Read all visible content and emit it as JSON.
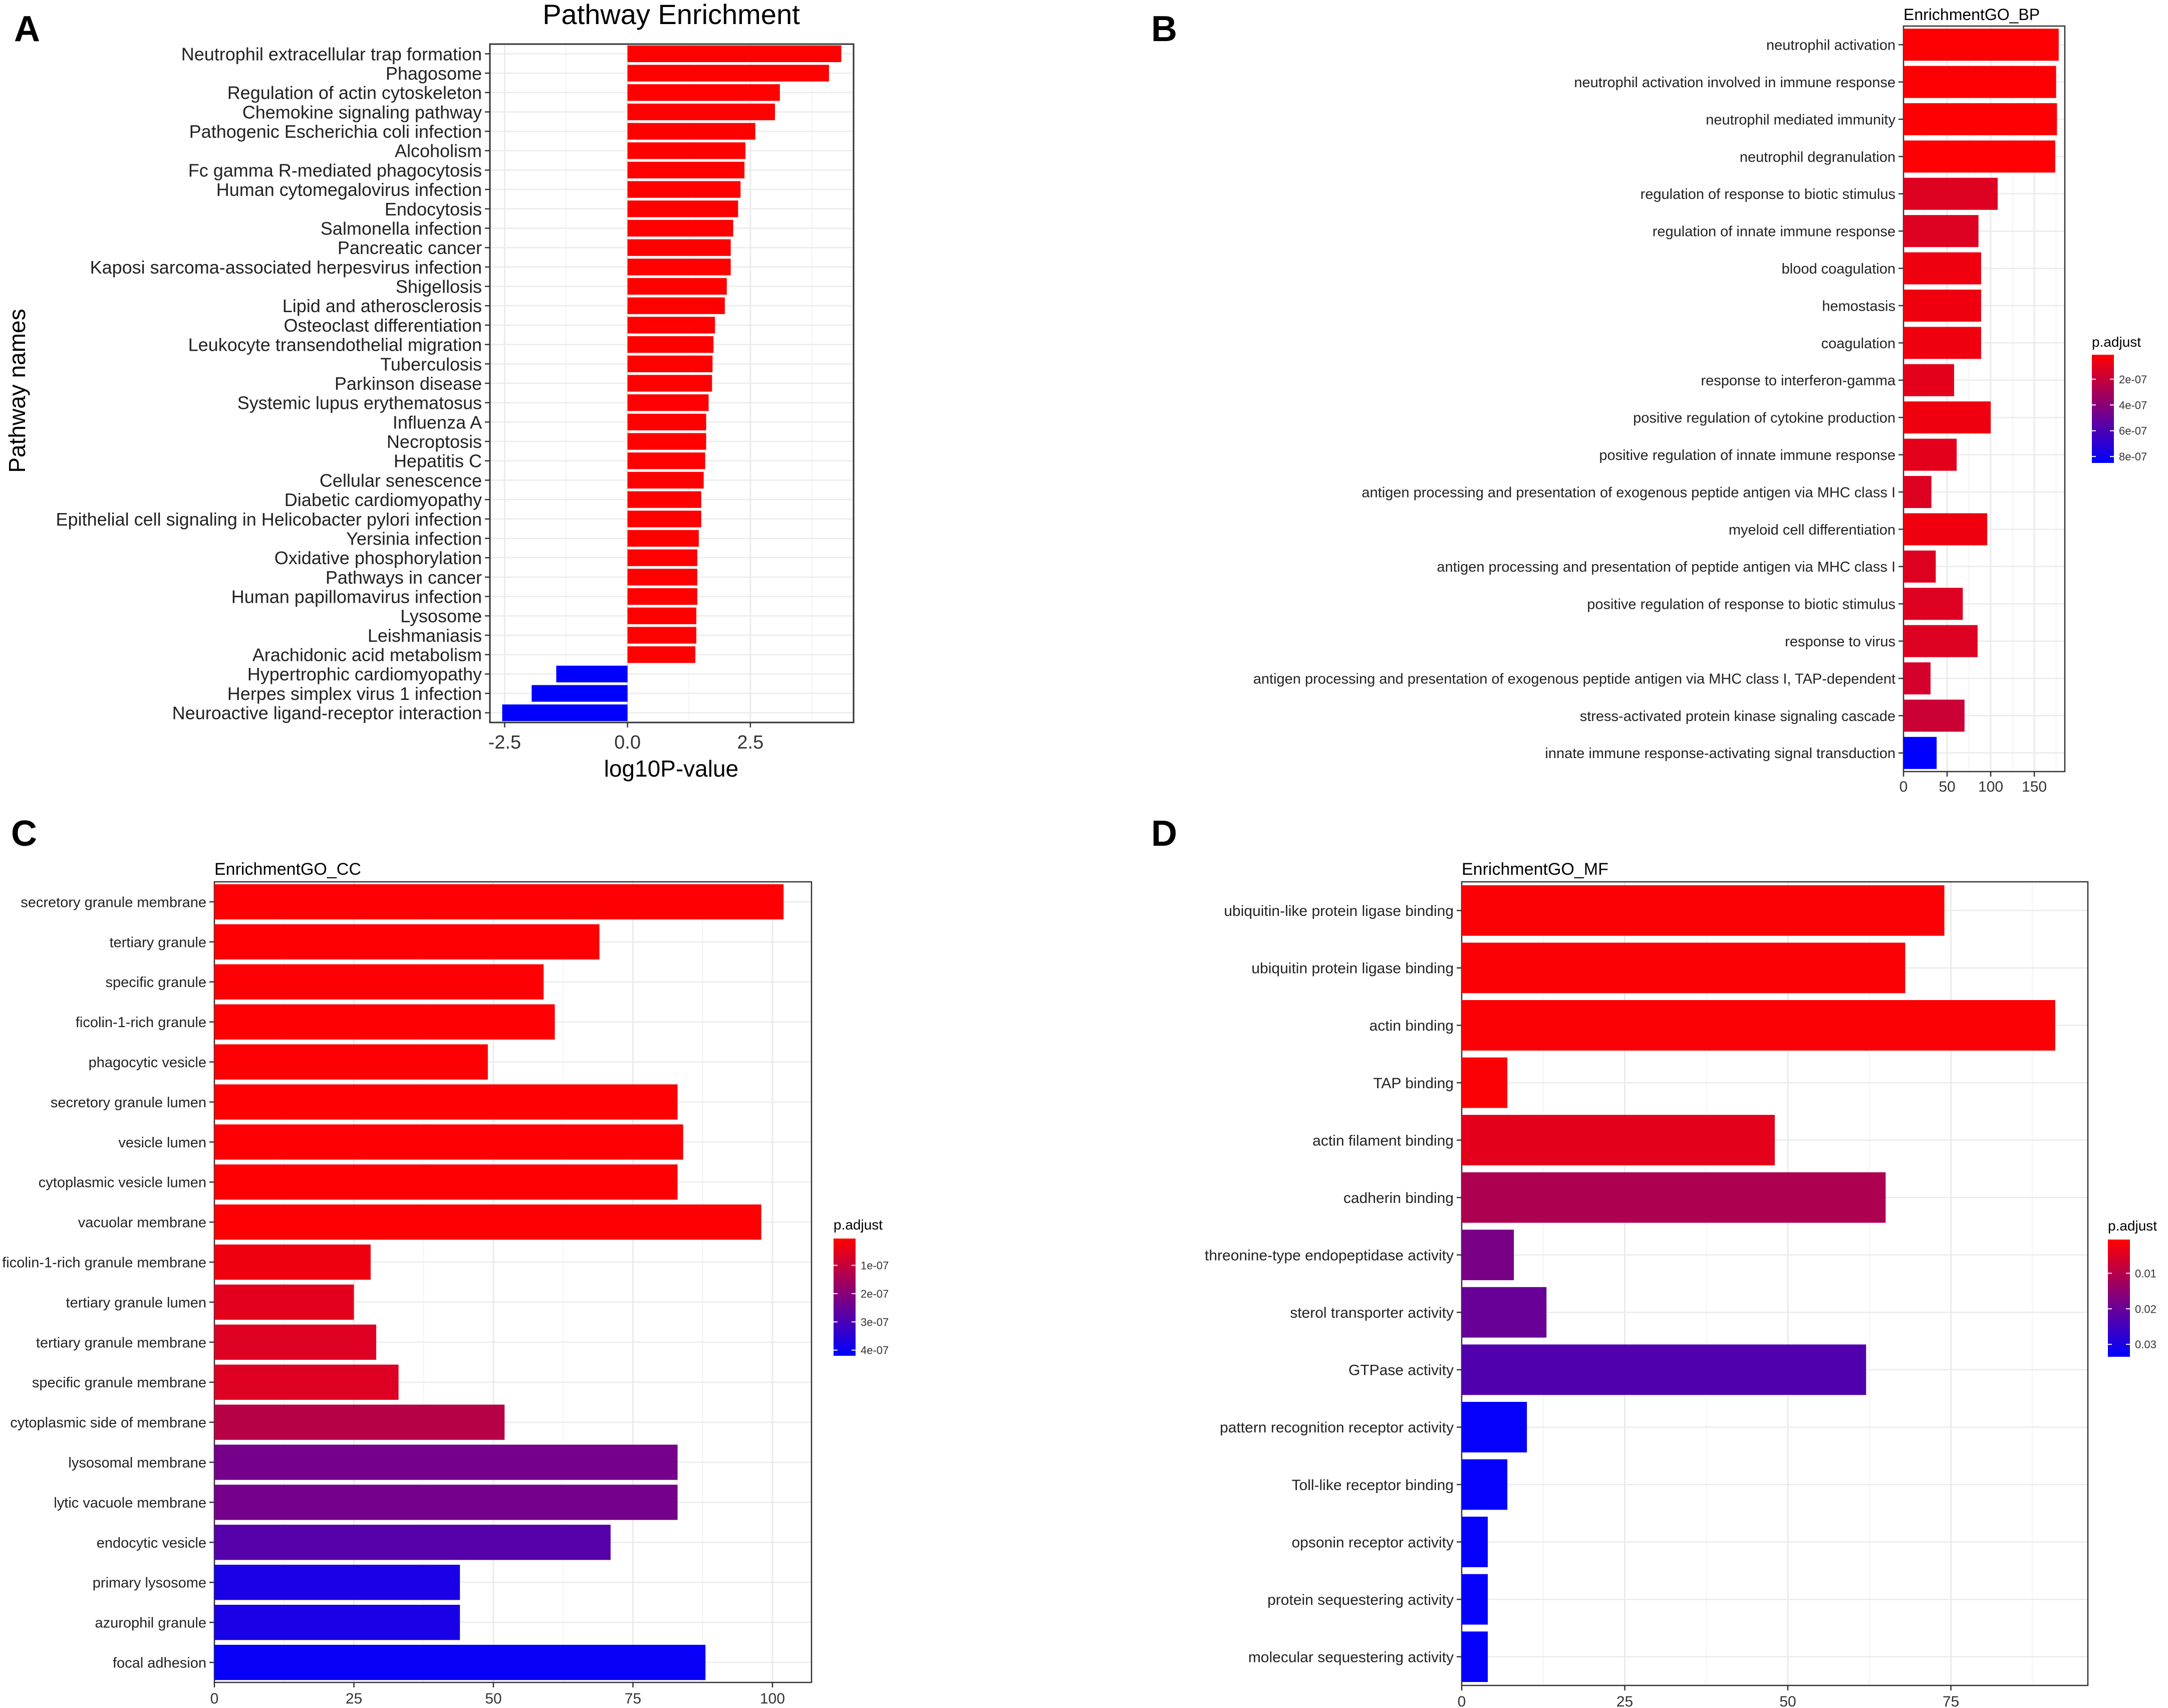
{
  "panels": {
    "A": "A",
    "B": "B",
    "C": "C",
    "D": "D"
  },
  "chart_data": [
    {
      "id": "A",
      "type": "bar",
      "orientation": "horizontal",
      "title": "Pathway Enrichment",
      "xlabel": "log10P-value",
      "ylabel": "Pathway names",
      "xlim": [
        -2.8,
        4.6
      ],
      "xticks": [
        -2.5,
        0.0,
        2.5
      ],
      "xtick_labels": [
        "-2.5",
        "0.0",
        "2.5"
      ],
      "positive_color": "#ff0000",
      "negative_color": "#0000ff",
      "categories": [
        "Neutrophil extracellular trap formation",
        "Phagosome",
        "Regulation of actin cytoskeleton",
        "Chemokine signaling pathway",
        "Pathogenic Escherichia coli infection",
        "Alcoholism",
        "Fc gamma R-mediated phagocytosis",
        "Human cytomegalovirus infection",
        "Endocytosis",
        "Salmonella infection",
        "Pancreatic cancer",
        "Kaposi sarcoma-associated herpesvirus infection",
        "Shigellosis",
        "Lipid and atherosclerosis",
        "Osteoclast differentiation",
        "Leukocyte transendothelial migration",
        "Tuberculosis",
        "Parkinson disease",
        "Systemic lupus erythematosus",
        "Influenza A",
        "Necroptosis",
        "Hepatitis C",
        "Cellular senescence",
        "Diabetic cardiomyopathy",
        "Epithelial cell signaling in Helicobacter pylori infection",
        "Yersinia infection",
        "Oxidative phosphorylation",
        "Pathways in cancer",
        "Human papillomavirus infection",
        "Lysosome",
        "Leishmaniasis",
        "Arachidonic acid metabolism",
        "Hypertrophic cardiomyopathy",
        "Herpes simplex virus 1 infection",
        "Neuroactive ligand-receptor interaction"
      ],
      "values": [
        4.35,
        4.1,
        3.1,
        3.0,
        2.6,
        2.4,
        2.38,
        2.3,
        2.25,
        2.15,
        2.1,
        2.1,
        2.02,
        1.98,
        1.78,
        1.75,
        1.73,
        1.72,
        1.65,
        1.6,
        1.6,
        1.58,
        1.55,
        1.5,
        1.5,
        1.45,
        1.42,
        1.42,
        1.42,
        1.4,
        1.4,
        1.38,
        -1.45,
        -1.95,
        -2.55
      ]
    },
    {
      "id": "B",
      "type": "bar",
      "orientation": "horizontal",
      "title": "EnrichmentGO_BP",
      "xlabel": "",
      "ylabel": "",
      "xlim": [
        0,
        185
      ],
      "xticks": [
        0,
        50,
        100,
        150
      ],
      "xtick_labels": [
        "0",
        "50",
        "100",
        "150"
      ],
      "legend_title": "p.adjust",
      "legend_range": [
        1e-08,
        8.5e-07
      ],
      "legend_ticks": [
        2e-07,
        4e-07,
        6e-07,
        8e-07
      ],
      "legend_labels": [
        "2e-07",
        "4e-07",
        "6e-07",
        "8e-07"
      ],
      "categories": [
        "neutrophil activation",
        "neutrophil activation involved in immune response",
        "neutrophil mediated immunity",
        "neutrophil degranulation",
        "regulation of response to biotic stimulus",
        "regulation of innate immune response",
        "blood coagulation",
        "hemostasis",
        "coagulation",
        "response to interferon-gamma",
        "positive regulation of cytokine production",
        "positive regulation of innate immune response",
        "antigen processing and presentation of exogenous peptide antigen via MHC class I",
        "myeloid cell differentiation",
        "antigen processing and presentation of peptide antigen via MHC class I",
        "positive regulation of response to biotic stimulus",
        "response to virus",
        "antigen processing and presentation of exogenous peptide antigen via MHC class I, TAP-dependent",
        "stress-activated protein kinase signaling cascade",
        "innate immune response-activating signal transduction"
      ],
      "values": [
        178,
        175,
        176,
        174,
        108,
        86,
        89,
        89,
        89,
        58,
        100,
        61,
        32,
        96,
        37,
        68,
        85,
        31,
        70,
        38
      ],
      "p_adjust": [
        2e-08,
        2e-08,
        2e-08,
        2e-08,
        1.2e-07,
        1.2e-07,
        6e-08,
        6e-08,
        6e-08,
        1e-07,
        6e-08,
        1e-07,
        1.2e-07,
        6e-08,
        1.2e-07,
        1.2e-07,
        1.2e-07,
        1.5e-07,
        1.8e-07,
        8.5e-07
      ]
    },
    {
      "id": "C",
      "type": "bar",
      "orientation": "horizontal",
      "title": "EnrichmentGO_CC",
      "xlabel": "",
      "ylabel": "",
      "xlim": [
        0,
        107
      ],
      "xticks": [
        0,
        25,
        50,
        75,
        100
      ],
      "xtick_labels": [
        "0",
        "25",
        "50",
        "75",
        "100"
      ],
      "legend_title": "p.adjust",
      "legend_range": [
        5e-09,
        4.2e-07
      ],
      "legend_ticks": [
        1e-07,
        2e-07,
        3e-07,
        4e-07
      ],
      "legend_labels": [
        "1e-07",
        "2e-07",
        "3e-07",
        "4e-07"
      ],
      "categories": [
        "secretory granule membrane",
        "tertiary granule",
        "specific granule",
        "ficolin-1-rich granule",
        "phagocytic vesicle",
        "secretory granule lumen",
        "vesicle lumen",
        "cytoplasmic vesicle lumen",
        "vacuolar membrane",
        "ficolin-1-rich granule membrane",
        "tertiary granule lumen",
        "tertiary granule membrane",
        "specific granule membrane",
        "cytoplasmic side of membrane",
        "lysosomal membrane",
        "lytic vacuole membrane",
        "endocytic vesicle",
        "primary lysosome",
        "azurophil granule",
        "focal adhesion"
      ],
      "values": [
        102,
        69,
        59,
        61,
        49,
        83,
        84,
        83,
        98,
        28,
        25,
        29,
        33,
        52,
        83,
        83,
        71,
        44,
        44,
        88
      ],
      "p_adjust": [
        1e-08,
        1e-08,
        1e-08,
        1e-08,
        1e-08,
        1e-08,
        1e-08,
        1e-08,
        1e-08,
        3e-08,
        5e-08,
        6e-08,
        6e-08,
        1.2e-07,
        2.3e-07,
        2.3e-07,
        2.8e-07,
        3.8e-07,
        3.8e-07,
        4.1e-07
      ]
    },
    {
      "id": "D",
      "type": "bar",
      "orientation": "horizontal",
      "title": "EnrichmentGO_MF",
      "xlabel": "",
      "ylabel": "",
      "xlim": [
        0,
        96
      ],
      "xticks": [
        0,
        25,
        50,
        75
      ],
      "xtick_labels": [
        "0",
        "25",
        "50",
        "75"
      ],
      "legend_title": "p.adjust",
      "legend_range": [
        0.0005,
        0.0335
      ],
      "legend_ticks": [
        0.01,
        0.02,
        0.03
      ],
      "legend_labels": [
        "0.01",
        "0.02",
        "0.03"
      ],
      "categories": [
        "ubiquitin-like protein ligase binding",
        "ubiquitin protein ligase binding",
        "actin binding",
        "TAP binding",
        "actin filament binding",
        "cadherin binding",
        "threonine-type endopeptidase activity",
        "sterol transporter activity",
        "GTPase activity",
        "pattern recognition receptor activity",
        "Toll-like receptor binding",
        "opsonin receptor activity",
        "protein sequestering activity",
        "molecular sequestering activity"
      ],
      "values": [
        74,
        68,
        91,
        7,
        48,
        65,
        8,
        13,
        62,
        10,
        7,
        4,
        4,
        4
      ],
      "p_adjust": [
        0.001,
        0.001,
        0.001,
        0.001,
        0.004,
        0.011,
        0.018,
        0.02,
        0.023,
        0.033,
        0.033,
        0.033,
        0.033,
        0.033
      ]
    }
  ]
}
